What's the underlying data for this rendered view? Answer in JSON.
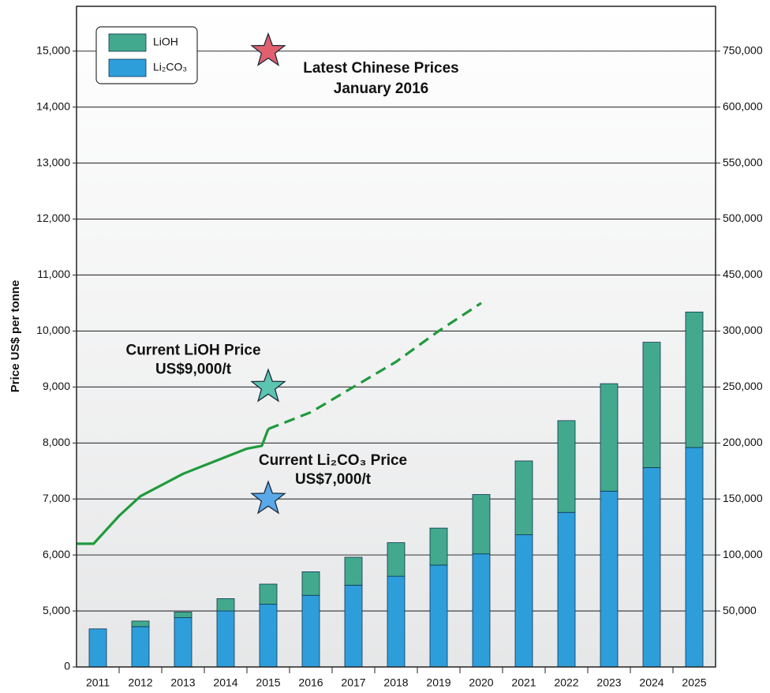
{
  "chart_data": {
    "type": "bar",
    "stacked": true,
    "y_label": "Price US$ per tonne",
    "categories": [
      "2011",
      "2012",
      "2013",
      "2014",
      "2015",
      "2016",
      "2017",
      "2018",
      "2019",
      "2020",
      "2021",
      "2022",
      "2023",
      "2024",
      "2025"
    ],
    "ylim": [
      0,
      15800
    ],
    "yticks": [
      0,
      {
        "value": 5000,
        "label": "5,000"
      },
      {
        "value": 6000,
        "label": "6,000"
      },
      {
        "value": 7000,
        "label": "7,000"
      },
      {
        "value": 8000,
        "label": "8,000"
      },
      {
        "value": 9000,
        "label": "9,000"
      },
      {
        "value": 10000,
        "label": "10,000"
      },
      {
        "value": 11000,
        "label": "11,000"
      },
      {
        "value": 12000,
        "label": "12,000"
      },
      {
        "value": 13000,
        "label": "13,000"
      },
      {
        "value": 14000,
        "label": "14,000"
      },
      {
        "value": 15000,
        "label": "15,000"
      }
    ],
    "y2lim": [
      0,
      870000
    ],
    "y2ticks": [
      {
        "value": 50000,
        "label": "50,000"
      },
      {
        "value": 100000,
        "label": "100,000"
      },
      {
        "value": 150000,
        "label": "150,000"
      },
      {
        "value": 200000,
        "label": "200,000"
      },
      {
        "value": 250000,
        "label": "250,000"
      },
      {
        "value": 300000,
        "label": "300,000"
      },
      {
        "value": 450000,
        "label": "450,000"
      },
      {
        "value": 500000,
        "label": "500,000"
      },
      {
        "value": 550000,
        "label": "550,000"
      },
      {
        "value": 600000,
        "label": "600,000"
      },
      {
        "value": 750000,
        "label": "750,000"
      }
    ],
    "axis_break": true,
    "grid": true,
    "legend": "top-left",
    "series": [
      {
        "name": "Li₂CO₃",
        "color": "#2e9edb",
        "axis": "y2",
        "values": [
          34000,
          36000,
          44000,
          50000,
          56000,
          64000,
          73000,
          81000,
          91000,
          101000,
          118000,
          138000,
          157000,
          178000,
          196000
        ]
      },
      {
        "name": "LiOH",
        "color": "#43a98e",
        "axis": "y2",
        "values": [
          0,
          5000,
          5000,
          11000,
          18000,
          21000,
          25000,
          30000,
          33000,
          53000,
          66000,
          82000,
          96000,
          112000,
          155000
        ]
      }
    ],
    "lines": [
      {
        "color": "#1f9a3c",
        "dashed": false,
        "x": [
          2010.5,
          2010.9,
          2011.5,
          2012,
          2012.5,
          2013,
          2013.5,
          2014,
          2014.5,
          2014.85,
          2015
        ],
        "values": [
          6200,
          6200,
          6700,
          7050,
          7250,
          7450,
          7600,
          7750,
          7900,
          7950,
          8250
        ]
      },
      {
        "color": "#1f9a3c",
        "dashed": true,
        "x": [
          2015,
          2016,
          2017,
          2018,
          2019,
          2020
        ],
        "values": [
          8250,
          8550,
          9000,
          9450,
          10000,
          10500
        ]
      }
    ],
    "markers": [
      {
        "x": 2015,
        "value": 15000,
        "color": "#e0606e",
        "text": [
          "Latest Chinese Prices",
          "January 2016"
        ]
      },
      {
        "x": 2015,
        "value": 9000,
        "color": "#5cc4b0",
        "text": [
          "Current LiOH Price",
          "US$9,000/t"
        ]
      },
      {
        "x": 2015,
        "value": 7000,
        "color": "#5aa8e8",
        "text": [
          "Current Li₂CO₃ Price",
          "US$7,000/t"
        ]
      }
    ]
  }
}
